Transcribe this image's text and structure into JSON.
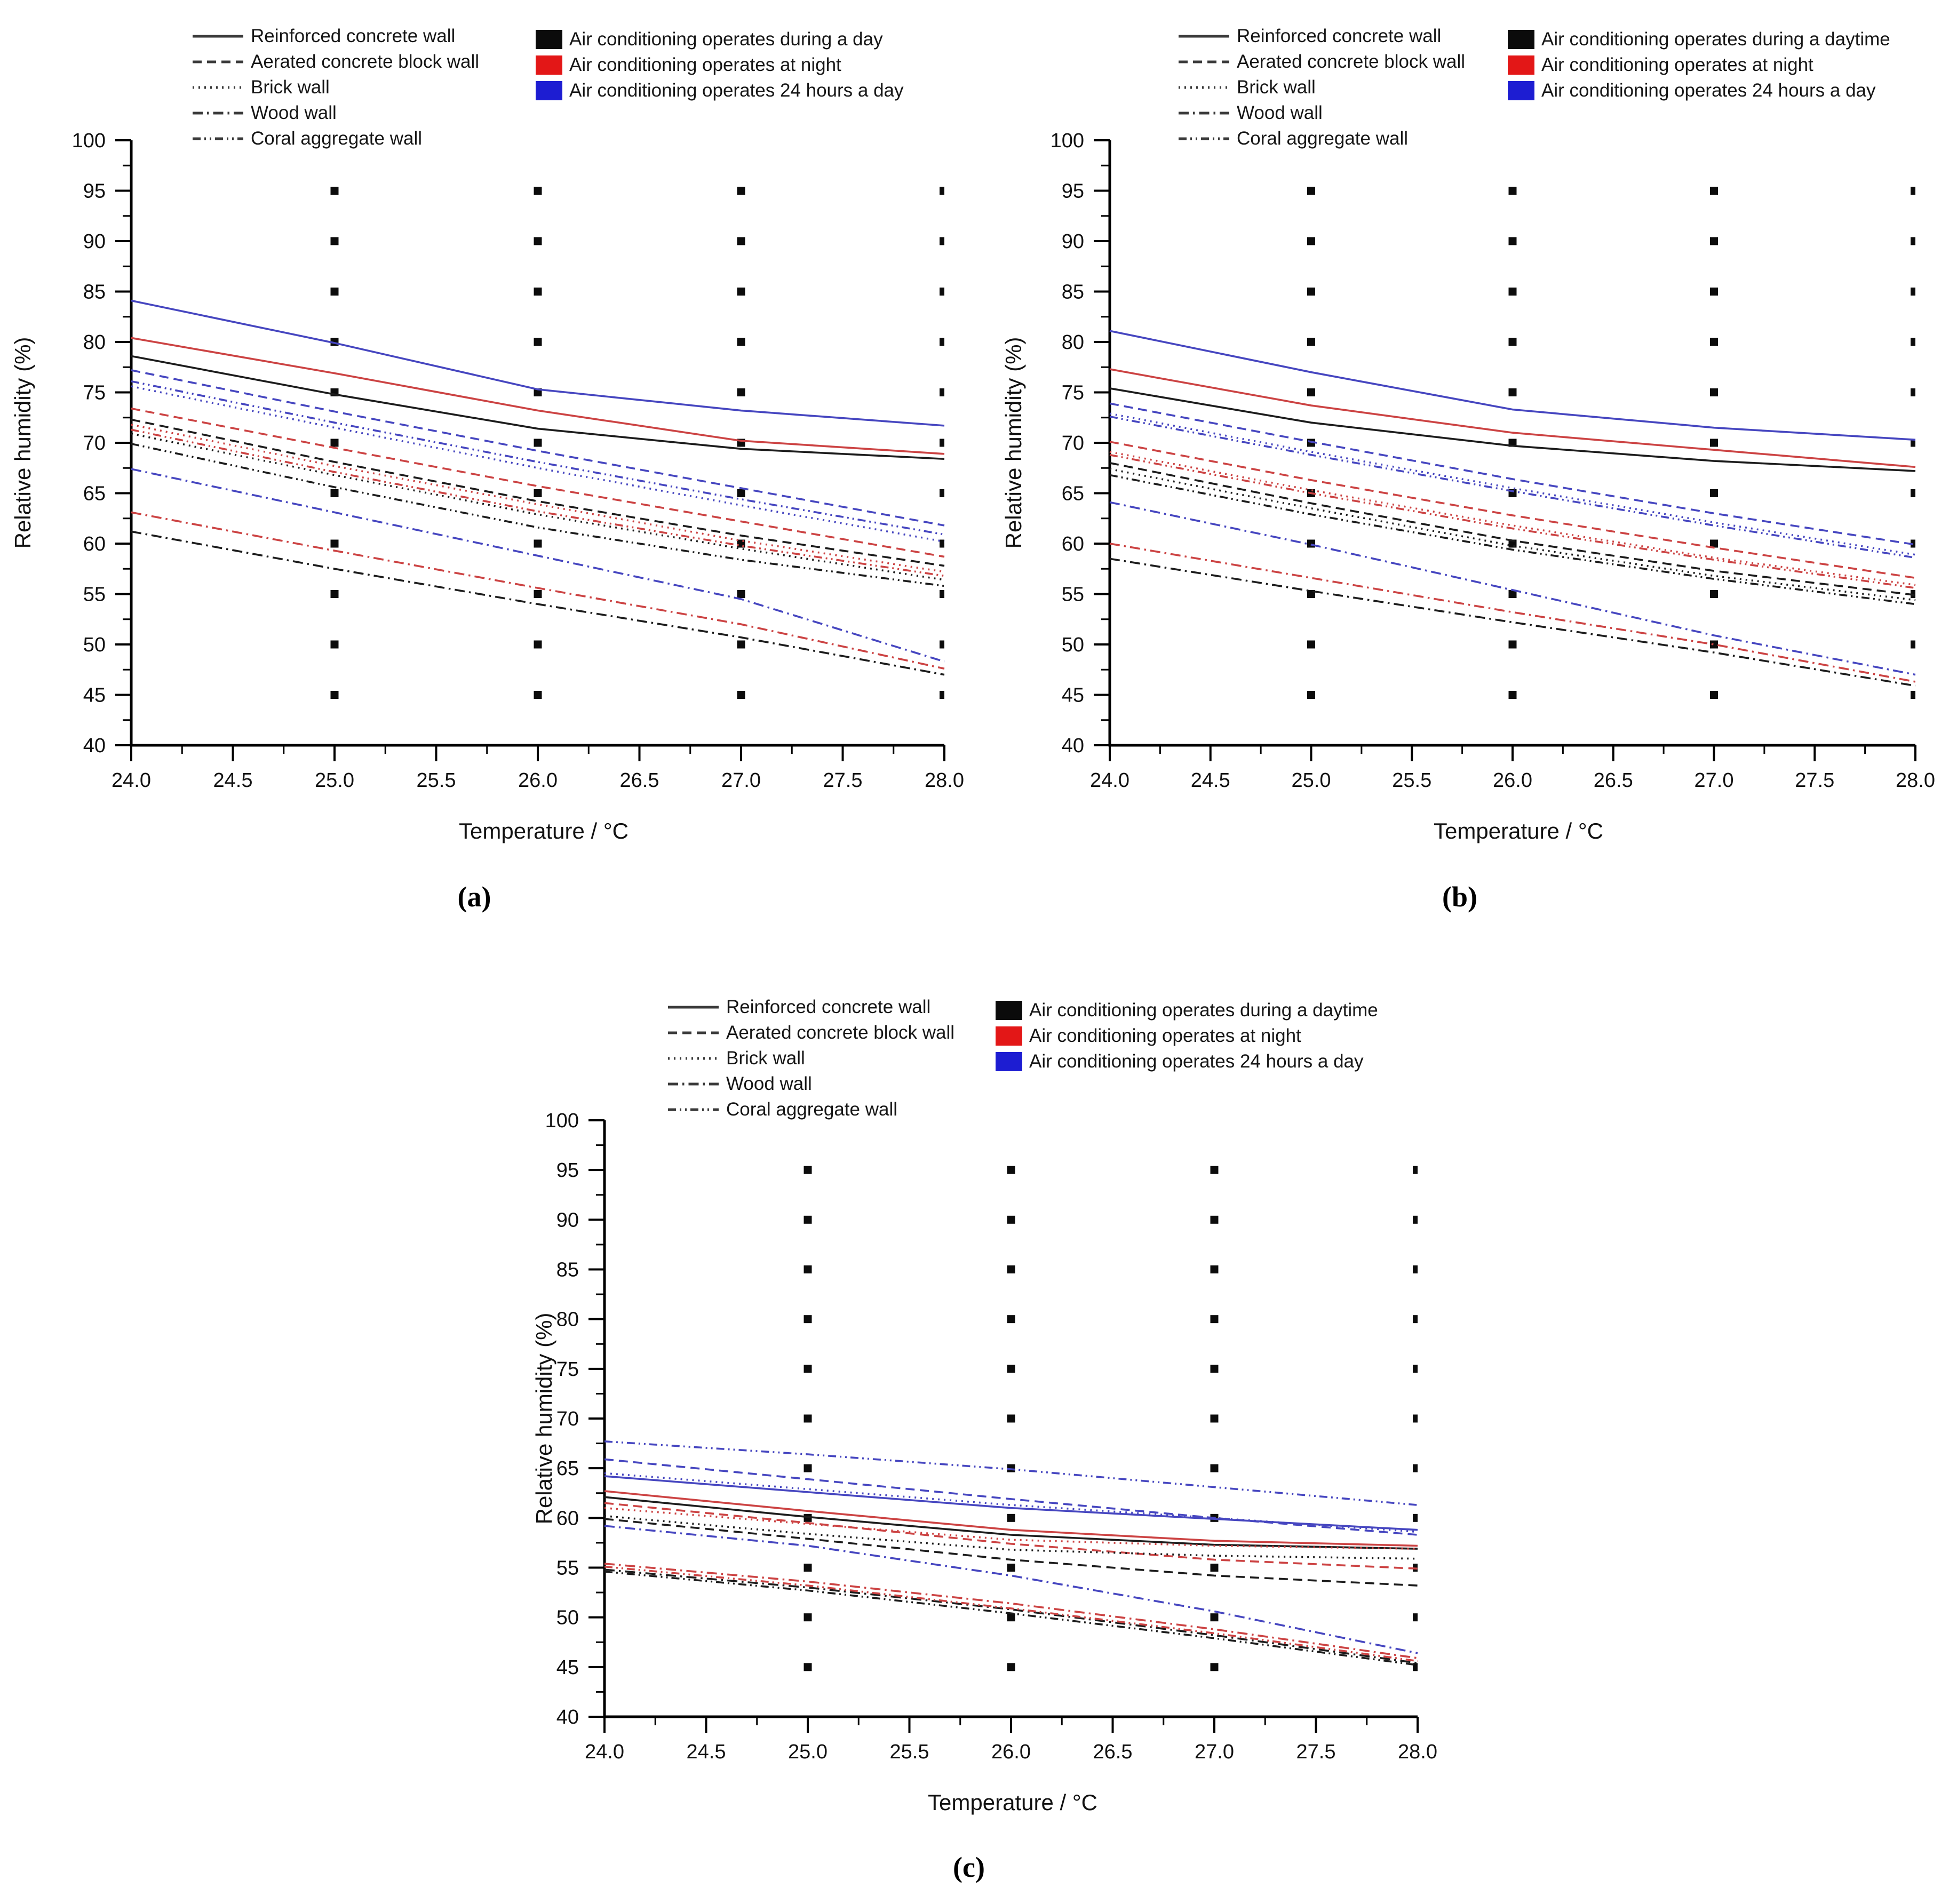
{
  "figure": {
    "description": "Relative humidity vs temperature for five wall types under three air-conditioning schedules",
    "sublabels": {
      "a": "(a)",
      "b": "(b)",
      "c": "(c)"
    }
  },
  "modes": {
    "day": {
      "line_color": "#1c1c1c",
      "swatch_color": "#0b0b0b"
    },
    "night": {
      "line_color": "#cc4343",
      "swatch_color": "#e31717"
    },
    "h24": {
      "line_color": "#4646c0",
      "swatch_color": "#1d1dd2"
    }
  },
  "legend_walls": [
    {
      "label": "Reinforced concrete wall",
      "style": "solid"
    },
    {
      "label": "Aerated concrete block wall",
      "style": "dashed"
    },
    {
      "label": "Brick wall",
      "style": "dotted"
    },
    {
      "label": "Wood wall",
      "style": "dash-dot"
    },
    {
      "label": "Coral aggregate wall",
      "style": "dash-dot-dot"
    }
  ],
  "chart_data": [
    {
      "id": "a",
      "type": "line",
      "sublabel": "(a)",
      "xlabel": "Temperature / °C",
      "ylabel": "Relative humidity (%)",
      "xlim": [
        24,
        28
      ],
      "ylim": [
        40,
        100
      ],
      "x_tick_labels": [
        "24.0",
        "24.5",
        "25.0",
        "25.5",
        "26.0",
        "26.5",
        "27.0",
        "27.5",
        "28.0"
      ],
      "y_tick_labels": [
        "40",
        "45",
        "50",
        "55",
        "60",
        "65",
        "70",
        "75",
        "80",
        "85",
        "90",
        "95",
        "100"
      ],
      "marker_grid": {
        "x": [
          25,
          26,
          27,
          28
        ],
        "y": [
          45,
          50,
          55,
          60,
          65,
          70,
          75,
          80,
          85,
          90,
          95
        ]
      },
      "legend_modes": [
        {
          "mode": "day",
          "label": "Air conditioning operates during a day"
        },
        {
          "mode": "night",
          "label": "Air conditioning operates at night"
        },
        {
          "mode": "h24",
          "label": "Air conditioning operates 24 hours a day"
        }
      ],
      "x": [
        24,
        25,
        26,
        27,
        28
      ],
      "series": [
        {
          "wall": "Reinforced concrete wall",
          "style": "solid",
          "mode": "day",
          "values": [
            78.6,
            74.8,
            71.4,
            69.4,
            68.4
          ]
        },
        {
          "wall": "Reinforced concrete wall",
          "style": "solid",
          "mode": "night",
          "values": [
            80.4,
            76.9,
            73.2,
            70.2,
            68.9
          ]
        },
        {
          "wall": "Reinforced concrete wall",
          "style": "solid",
          "mode": "h24",
          "values": [
            84.1,
            79.9,
            75.3,
            73.2,
            71.7
          ]
        },
        {
          "wall": "Aerated concrete block wall",
          "style": "dashed",
          "mode": "day",
          "values": [
            72.3,
            68.1,
            64.2,
            60.8,
            57.8
          ]
        },
        {
          "wall": "Aerated concrete block wall",
          "style": "dashed",
          "mode": "night",
          "values": [
            73.4,
            69.5,
            65.7,
            62.2,
            58.7
          ]
        },
        {
          "wall": "Aerated concrete block wall",
          "style": "dashed",
          "mode": "h24",
          "values": [
            77.2,
            73.1,
            69.2,
            65.5,
            61.8
          ]
        },
        {
          "wall": "Brick wall",
          "style": "dotted",
          "mode": "day",
          "values": [
            70.9,
            66.8,
            62.9,
            59.5,
            56.4
          ]
        },
        {
          "wall": "Brick wall",
          "style": "dotted",
          "mode": "night",
          "values": [
            71.8,
            67.7,
            63.9,
            60.3,
            57.2
          ]
        },
        {
          "wall": "Brick wall",
          "style": "dotted",
          "mode": "h24",
          "values": [
            75.6,
            71.5,
            67.5,
            63.8,
            60.2
          ]
        },
        {
          "wall": "Wood wall",
          "style": "dash-dot",
          "mode": "day",
          "values": [
            61.2,
            57.5,
            54.0,
            50.7,
            47.0
          ]
        },
        {
          "wall": "Wood wall",
          "style": "dash-dot",
          "mode": "night",
          "values": [
            63.1,
            59.3,
            55.6,
            52.0,
            47.6
          ]
        },
        {
          "wall": "Wood wall",
          "style": "dash-dot",
          "mode": "h24",
          "values": [
            67.4,
            63.1,
            58.8,
            54.5,
            48.3
          ]
        },
        {
          "wall": "Coral aggregate wall",
          "style": "dash-dot-dot",
          "mode": "day",
          "values": [
            69.9,
            65.6,
            61.6,
            58.4,
            55.8
          ]
        },
        {
          "wall": "Coral aggregate wall",
          "style": "dash-dot-dot",
          "mode": "night",
          "values": [
            71.3,
            67.1,
            63.2,
            59.8,
            56.8
          ]
        },
        {
          "wall": "Coral aggregate wall",
          "style": "dash-dot-dot",
          "mode": "h24",
          "values": [
            76.1,
            72.0,
            68.1,
            64.4,
            60.9
          ]
        }
      ]
    },
    {
      "id": "b",
      "type": "line",
      "sublabel": "(b)",
      "xlabel": "Temperature / °C",
      "ylabel": "Relative humidity (%)",
      "xlim": [
        24,
        28
      ],
      "ylim": [
        40,
        100
      ],
      "x_tick_labels": [
        "24.0",
        "24.5",
        "25.0",
        "25.5",
        "26.0",
        "26.5",
        "27.0",
        "27.5",
        "28.0"
      ],
      "y_tick_labels": [
        "40",
        "45",
        "50",
        "55",
        "60",
        "65",
        "70",
        "75",
        "80",
        "85",
        "90",
        "95",
        "100"
      ],
      "marker_grid": {
        "x": [
          25,
          26,
          27,
          28
        ],
        "y": [
          45,
          50,
          55,
          60,
          65,
          70,
          75,
          80,
          85,
          90,
          95
        ]
      },
      "legend_modes": [
        {
          "mode": "day",
          "label": "Air conditioning operates during a daytime"
        },
        {
          "mode": "night",
          "label": "Air conditioning operates at night"
        },
        {
          "mode": "h24",
          "label": "Air conditioning operates 24 hours a day"
        }
      ],
      "x": [
        24,
        25,
        26,
        27,
        28
      ],
      "series": [
        {
          "wall": "Reinforced concrete wall",
          "style": "solid",
          "mode": "day",
          "values": [
            75.4,
            72.0,
            69.7,
            68.2,
            67.2
          ]
        },
        {
          "wall": "Reinforced concrete wall",
          "style": "solid",
          "mode": "night",
          "values": [
            77.3,
            73.7,
            71.0,
            69.3,
            67.6
          ]
        },
        {
          "wall": "Reinforced concrete wall",
          "style": "solid",
          "mode": "h24",
          "values": [
            81.1,
            77.0,
            73.3,
            71.5,
            70.3
          ]
        },
        {
          "wall": "Aerated concrete block wall",
          "style": "dashed",
          "mode": "day",
          "values": [
            68.0,
            64.0,
            60.3,
            57.3,
            54.9
          ]
        },
        {
          "wall": "Aerated concrete block wall",
          "style": "dashed",
          "mode": "night",
          "values": [
            70.1,
            66.3,
            62.8,
            59.6,
            56.6
          ]
        },
        {
          "wall": "Aerated concrete block wall",
          "style": "dashed",
          "mode": "h24",
          "values": [
            73.9,
            70.1,
            66.4,
            63.0,
            59.9
          ]
        },
        {
          "wall": "Brick wall",
          "style": "dotted",
          "mode": "day",
          "values": [
            67.4,
            63.5,
            59.8,
            56.8,
            54.4
          ]
        },
        {
          "wall": "Brick wall",
          "style": "dotted",
          "mode": "night",
          "values": [
            69.1,
            65.3,
            61.8,
            58.6,
            55.9
          ]
        },
        {
          "wall": "Brick wall",
          "style": "dotted",
          "mode": "h24",
          "values": [
            72.9,
            69.1,
            65.5,
            62.1,
            58.9
          ]
        },
        {
          "wall": "Wood wall",
          "style": "dash-dot",
          "mode": "day",
          "values": [
            58.5,
            55.3,
            52.2,
            49.2,
            45.9
          ]
        },
        {
          "wall": "Wood wall",
          "style": "dash-dot",
          "mode": "night",
          "values": [
            60.0,
            56.6,
            53.2,
            50.0,
            46.3
          ]
        },
        {
          "wall": "Wood wall",
          "style": "dash-dot",
          "mode": "h24",
          "values": [
            64.1,
            59.9,
            55.4,
            50.9,
            47.0
          ]
        },
        {
          "wall": "Coral aggregate wall",
          "style": "dash-dot-dot",
          "mode": "day",
          "values": [
            66.8,
            62.9,
            59.4,
            56.5,
            54.0
          ]
        },
        {
          "wall": "Coral aggregate wall",
          "style": "dash-dot-dot",
          "mode": "night",
          "values": [
            68.8,
            65.0,
            61.5,
            58.4,
            55.6
          ]
        },
        {
          "wall": "Coral aggregate wall",
          "style": "dash-dot-dot",
          "mode": "h24",
          "values": [
            72.6,
            68.8,
            65.2,
            61.8,
            58.6
          ]
        }
      ]
    },
    {
      "id": "c",
      "type": "line",
      "sublabel": "(c)",
      "xlabel": "Temperature / °C",
      "ylabel": "Relative humidity (%)",
      "xlim": [
        24,
        28
      ],
      "ylim": [
        40,
        100
      ],
      "x_tick_labels": [
        "24.0",
        "24.5",
        "25.0",
        "25.5",
        "26.0",
        "26.5",
        "27.0",
        "27.5",
        "28.0"
      ],
      "y_tick_labels": [
        "40",
        "45",
        "50",
        "55",
        "60",
        "65",
        "70",
        "75",
        "80",
        "85",
        "90",
        "95",
        "100"
      ],
      "marker_grid": {
        "x": [
          25,
          26,
          27,
          28
        ],
        "y": [
          45,
          50,
          55,
          60,
          65,
          70,
          75,
          80,
          85,
          90,
          95
        ]
      },
      "legend_modes": [
        {
          "mode": "day",
          "label": "Air conditioning operates during a daytime"
        },
        {
          "mode": "night",
          "label": "Air conditioning operates at night"
        },
        {
          "mode": "h24",
          "label": "Air conditioning operates 24 hours a day"
        }
      ],
      "x": [
        24,
        25,
        26,
        27,
        28
      ],
      "series": [
        {
          "wall": "Reinforced concrete wall",
          "style": "solid",
          "mode": "day",
          "values": [
            62.1,
            60.1,
            58.3,
            57.3,
            56.9
          ]
        },
        {
          "wall": "Reinforced concrete wall",
          "style": "solid",
          "mode": "night",
          "values": [
            62.7,
            60.7,
            58.8,
            57.7,
            57.2
          ]
        },
        {
          "wall": "Reinforced concrete wall",
          "style": "solid",
          "mode": "h24",
          "values": [
            64.2,
            62.6,
            61.0,
            59.9,
            58.8
          ]
        },
        {
          "wall": "Aerated concrete block wall",
          "style": "dashed",
          "mode": "day",
          "values": [
            59.9,
            57.9,
            55.8,
            54.2,
            53.2
          ]
        },
        {
          "wall": "Aerated concrete block wall",
          "style": "dashed",
          "mode": "night",
          "values": [
            61.5,
            59.5,
            57.4,
            55.8,
            54.9
          ]
        },
        {
          "wall": "Aerated concrete block wall",
          "style": "dashed",
          "mode": "h24",
          "values": [
            65.9,
            63.9,
            61.9,
            60.0,
            58.3
          ]
        },
        {
          "wall": "Brick wall",
          "style": "dotted",
          "mode": "day",
          "values": [
            60.2,
            58.4,
            56.8,
            56.2,
            55.9
          ]
        },
        {
          "wall": "Brick wall",
          "style": "dotted",
          "mode": "night",
          "values": [
            61.0,
            59.4,
            57.8,
            57.2,
            56.9
          ]
        },
        {
          "wall": "Brick wall",
          "style": "dotted",
          "mode": "h24",
          "values": [
            64.5,
            62.9,
            61.3,
            60.0,
            58.6
          ]
        },
        {
          "wall": "Wood wall",
          "style": "dash-dot",
          "mode": "day",
          "values": [
            54.8,
            53.0,
            50.8,
            48.2,
            45.4
          ]
        },
        {
          "wall": "Wood wall",
          "style": "dash-dot",
          "mode": "night",
          "values": [
            55.4,
            53.6,
            51.4,
            48.8,
            45.9
          ]
        },
        {
          "wall": "Wood wall",
          "style": "dash-dot",
          "mode": "h24",
          "values": [
            59.2,
            57.2,
            54.2,
            50.6,
            46.4
          ]
        },
        {
          "wall": "Coral aggregate wall",
          "style": "dash-dot-dot",
          "mode": "day",
          "values": [
            54.6,
            52.7,
            50.4,
            47.9,
            45.2
          ]
        },
        {
          "wall": "Coral aggregate wall",
          "style": "dash-dot-dot",
          "mode": "night",
          "values": [
            55.1,
            53.2,
            50.9,
            48.4,
            45.6
          ]
        },
        {
          "wall": "Coral aggregate wall",
          "style": "dash-dot-dot",
          "mode": "h24",
          "values": [
            67.7,
            66.4,
            64.9,
            63.1,
            61.3
          ]
        }
      ]
    }
  ]
}
